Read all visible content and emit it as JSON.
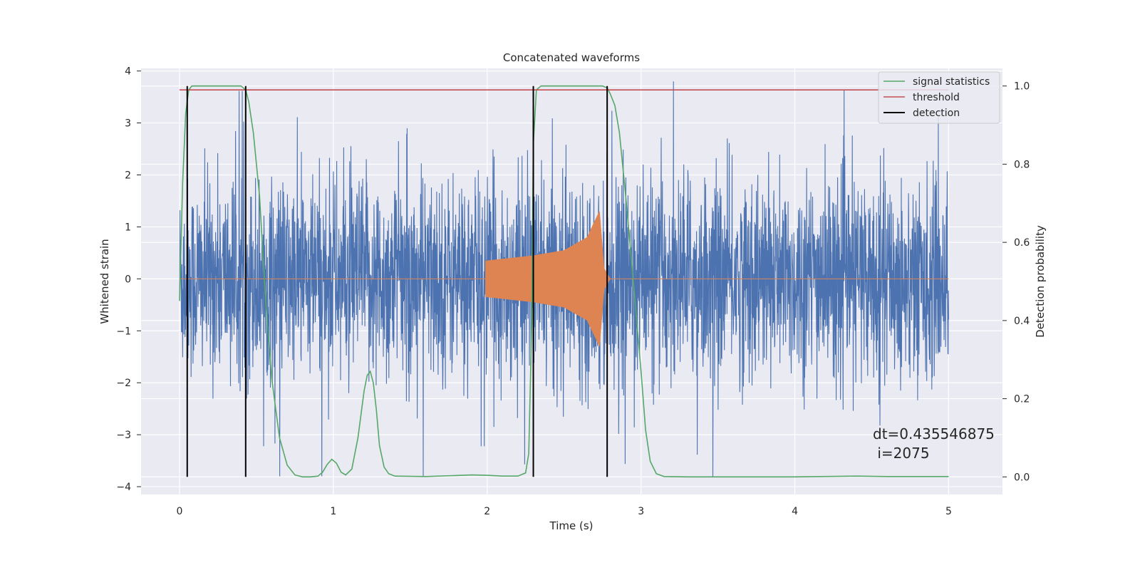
{
  "chart_data": {
    "type": "line",
    "title": "Concatenated waveforms",
    "xlabel": "Time (s)",
    "ylabel": "Whitened strain",
    "y2label": "Detection probability",
    "xlim": [
      -0.25,
      5.35
    ],
    "ylim": [
      -4.15,
      4.05
    ],
    "y2lim": [
      -0.045,
      1.045
    ],
    "x_ticks": [
      0,
      1,
      2,
      3,
      4,
      5
    ],
    "x_tick_labels": [
      "0",
      "1",
      "2",
      "3",
      "4",
      "5"
    ],
    "y_ticks": [
      -4,
      -3,
      -2,
      -1,
      0,
      1,
      2,
      3,
      4
    ],
    "y_tick_labels": [
      "−4",
      "−3",
      "−2",
      "−1",
      "0",
      "1",
      "2",
      "3",
      "4"
    ],
    "y2_ticks": [
      0.0,
      0.2,
      0.4,
      0.6,
      0.8,
      1.0
    ],
    "y2_tick_labels": [
      "0.0",
      "0.2",
      "0.4",
      "0.6",
      "0.8",
      "1.0"
    ],
    "grid": true,
    "legend_position": "top-right",
    "series": [
      {
        "key": "strain",
        "axis": "left",
        "color": "#4c72b0",
        "description": "whitened strain noise, roughly ±2.5 with spikes to ±3.7, spanning 0 to 5 s",
        "x_range": [
          0,
          5
        ],
        "typical_amplitude": 2.2,
        "max_abs": 3.8
      },
      {
        "key": "injected",
        "axis": "left",
        "color": "#dd8452",
        "x_range": [
          0,
          5
        ],
        "chirp_x_range": [
          1.99,
          2.8
        ],
        "chirp_envelope": [
          [
            1.99,
            0.35
          ],
          [
            2.3,
            0.45
          ],
          [
            2.5,
            0.55
          ],
          [
            2.65,
            0.8
          ],
          [
            2.73,
            1.3
          ],
          [
            2.76,
            0.2
          ],
          [
            2.8,
            0
          ]
        ]
      },
      {
        "name": "signal statistics",
        "key": "statistic",
        "axis": "right",
        "color": "#55a868",
        "x": [
          0.0,
          0.02,
          0.04,
          0.06,
          0.08,
          0.1,
          0.2,
          0.35,
          0.4,
          0.43,
          0.45,
          0.48,
          0.52,
          0.56,
          0.6,
          0.65,
          0.7,
          0.75,
          0.8,
          0.85,
          0.9,
          0.93,
          0.96,
          0.99,
          1.02,
          1.05,
          1.08,
          1.12,
          1.16,
          1.2,
          1.22,
          1.24,
          1.26,
          1.28,
          1.3,
          1.33,
          1.36,
          1.4,
          1.6,
          1.9,
          2.0,
          2.1,
          2.2,
          2.25,
          2.27,
          2.29,
          2.3,
          2.32,
          2.35,
          2.4,
          2.6,
          2.75,
          2.78,
          2.8,
          2.83,
          2.86,
          2.9,
          2.95,
          3.0,
          3.03,
          3.06,
          3.1,
          3.15,
          3.3,
          3.6,
          4.0,
          4.4,
          4.6,
          5.0
        ],
        "y": [
          0.45,
          0.75,
          0.93,
          0.99,
          1.0,
          1.0,
          1.0,
          1.0,
          1.0,
          0.99,
          0.96,
          0.88,
          0.72,
          0.45,
          0.25,
          0.1,
          0.03,
          0.005,
          0.0,
          0.0,
          0.002,
          0.012,
          0.032,
          0.045,
          0.035,
          0.012,
          0.005,
          0.02,
          0.1,
          0.22,
          0.26,
          0.27,
          0.24,
          0.17,
          0.08,
          0.025,
          0.008,
          0.002,
          0.001,
          0.005,
          0.004,
          0.002,
          0.002,
          0.01,
          0.06,
          0.4,
          0.85,
          0.99,
          1.0,
          1.0,
          1.0,
          1.0,
          0.995,
          0.98,
          0.95,
          0.88,
          0.72,
          0.5,
          0.27,
          0.12,
          0.04,
          0.008,
          0.001,
          0.0,
          0.0,
          0.0,
          0.002,
          0.001,
          0.001
        ]
      },
      {
        "name": "threshold",
        "key": "threshold",
        "axis": "right",
        "color": "#c44e52",
        "x": [
          0,
          5
        ],
        "y": [
          0.99,
          0.99
        ]
      },
      {
        "name": "detection",
        "key": "detection",
        "axis": "right",
        "color": "#000000",
        "vertical_lines_x": [
          0.05,
          0.43,
          2.3,
          2.78
        ],
        "y_span": [
          0.0,
          1.0
        ]
      }
    ],
    "annotation": {
      "line1": "dt=0.435546875",
      "line2": " i=2075"
    }
  }
}
